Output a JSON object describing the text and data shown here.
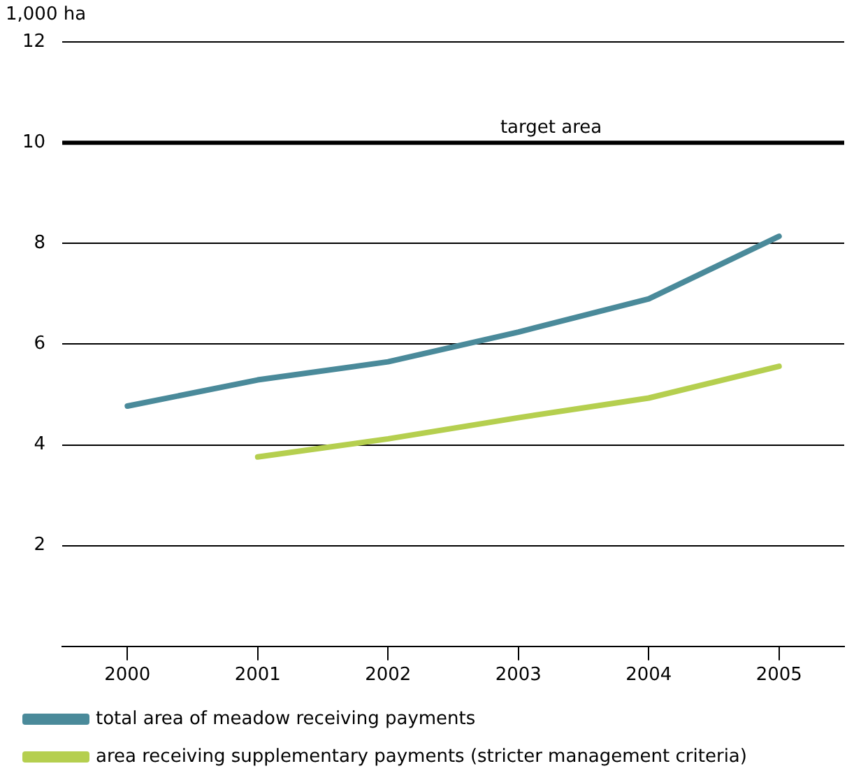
{
  "chart_data": {
    "type": "line",
    "ylabel": "1,000 ha",
    "categories": [
      "2000",
      "2001",
      "2002",
      "2003",
      "2004",
      "2005"
    ],
    "series": [
      {
        "name": "total area of meadow receiving payments",
        "color": "#4a8a9a",
        "values": [
          4.77,
          5.29,
          5.65,
          6.24,
          6.9,
          8.14
        ]
      },
      {
        "name": "area receiving supplementary payments (stricter management criteria)",
        "color": "#b5cf4f",
        "values": [
          null,
          3.76,
          4.12,
          4.54,
          4.93,
          5.56
        ]
      }
    ],
    "ylim": [
      0,
      12
    ],
    "yticks": [
      2,
      4,
      6,
      8,
      10,
      12
    ],
    "grid": "y",
    "legend": "bottom",
    "marker": "none",
    "line_style": "solid",
    "ref_lines": [
      {
        "axis": "y",
        "value": 10,
        "label": "target area",
        "color": "#000000"
      }
    ]
  }
}
